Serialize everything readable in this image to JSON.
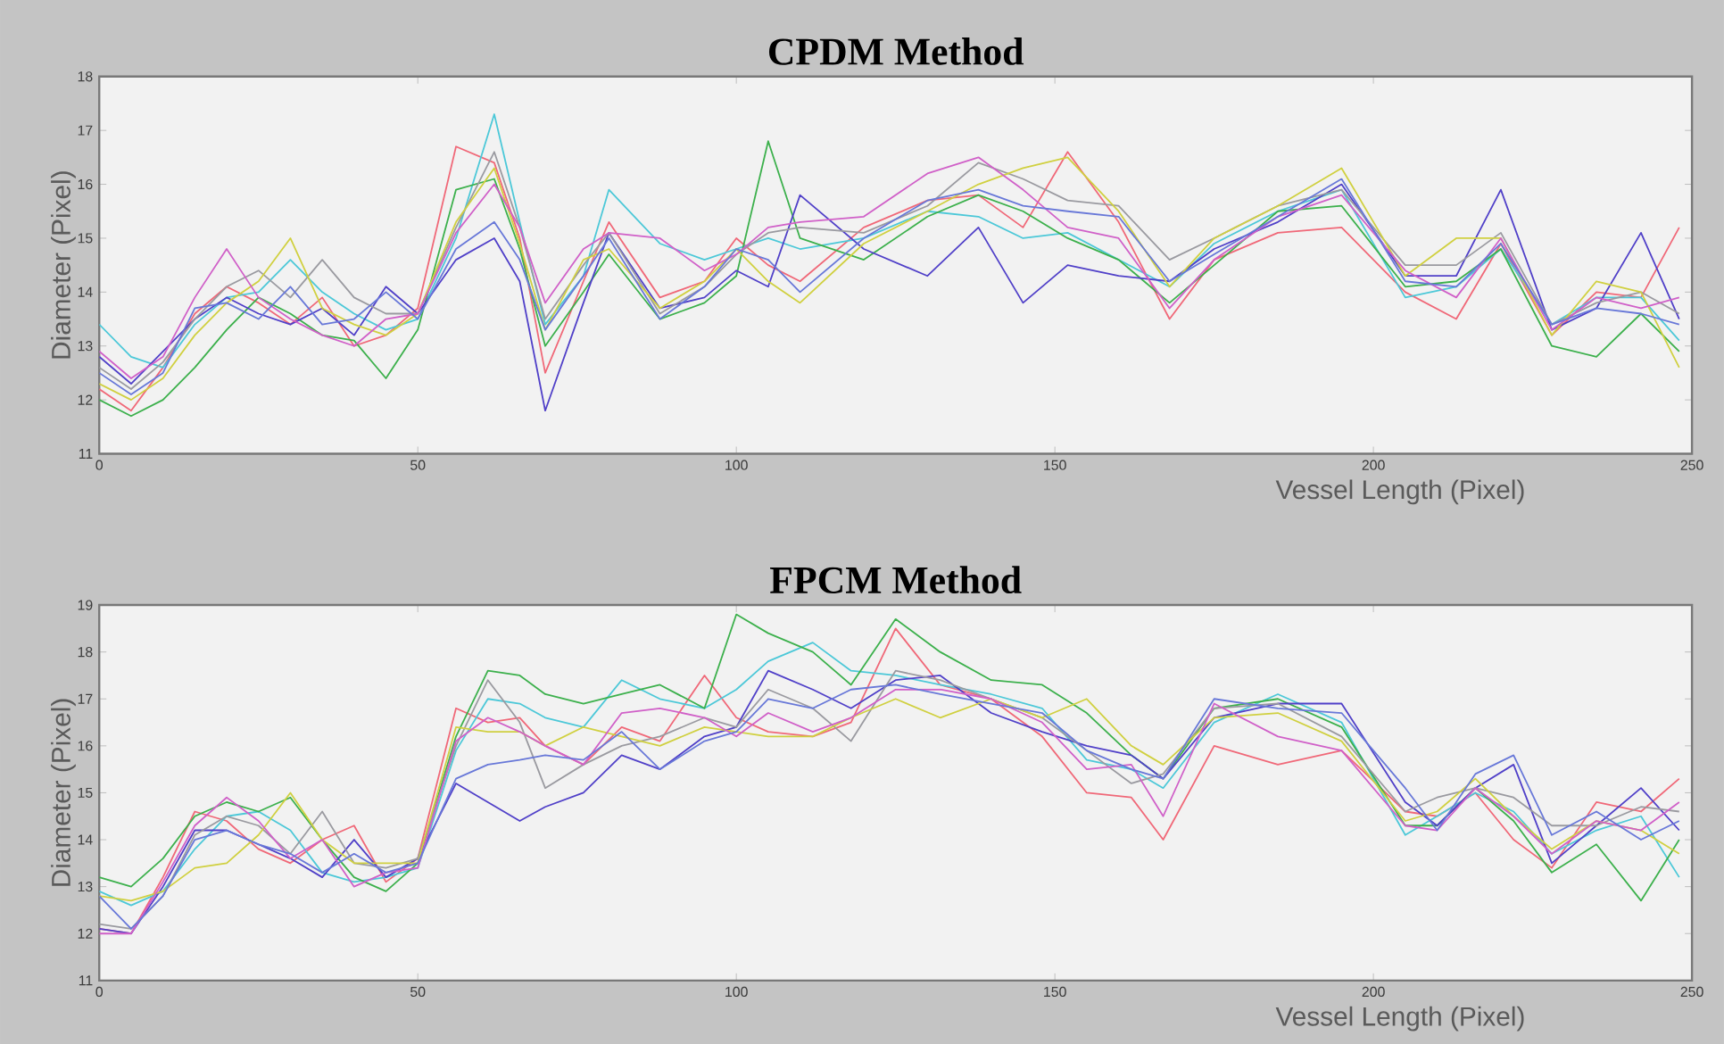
{
  "chart_data": [
    {
      "type": "line",
      "title": "CPDM Method",
      "xlabel": "Vessel Length (Pixel)",
      "ylabel": "Diameter (Pixel)",
      "xlim": [
        0,
        250
      ],
      "ylim": [
        11,
        18
      ],
      "xticks": [
        0,
        50,
        100,
        150,
        200,
        250
      ],
      "yticks": [
        11,
        12,
        13,
        14,
        15,
        16,
        17,
        18
      ],
      "marker": "none",
      "line_style": "solid",
      "x": [
        0,
        5,
        10,
        15,
        20,
        25,
        30,
        35,
        40,
        45,
        50,
        56,
        62,
        66,
        70,
        76,
        80,
        88,
        95,
        100,
        105,
        110,
        120,
        130,
        138,
        145,
        152,
        160,
        168,
        175,
        185,
        195,
        205,
        213,
        220,
        228,
        235,
        242,
        248
      ],
      "series": [
        {
          "color": "#f06878",
          "values": [
            12.2,
            11.8,
            12.6,
            13.6,
            14.1,
            13.8,
            13.4,
            13.9,
            13.0,
            13.2,
            13.7,
            16.7,
            16.4,
            15.0,
            12.5,
            14.2,
            15.3,
            13.9,
            14.2,
            15.0,
            14.5,
            14.2,
            15.2,
            15.7,
            15.8,
            15.2,
            16.6,
            15.3,
            13.5,
            14.6,
            15.1,
            15.2,
            14.0,
            13.5,
            14.9,
            13.2,
            14.0,
            13.9,
            15.2
          ]
        },
        {
          "color": "#4cc8d8",
          "values": [
            13.4,
            12.8,
            12.6,
            13.4,
            13.9,
            14.0,
            14.6,
            14.0,
            13.6,
            13.3,
            13.5,
            15.0,
            17.3,
            15.3,
            13.4,
            14.3,
            15.9,
            14.9,
            14.6,
            14.8,
            15.0,
            14.8,
            15.0,
            15.5,
            15.4,
            15.0,
            15.1,
            14.6,
            14.1,
            14.9,
            15.5,
            15.9,
            13.9,
            14.1,
            14.8,
            13.4,
            13.9,
            13.9,
            13.1
          ]
        },
        {
          "color": "#3cb04c",
          "values": [
            12.0,
            11.7,
            12.0,
            12.6,
            13.3,
            13.9,
            13.6,
            13.2,
            13.1,
            12.4,
            13.3,
            15.9,
            16.1,
            14.8,
            13.0,
            14.0,
            14.7,
            13.5,
            13.8,
            14.3,
            16.8,
            15.0,
            14.6,
            15.4,
            15.8,
            15.5,
            15.0,
            14.6,
            13.8,
            14.5,
            15.5,
            15.6,
            14.1,
            14.2,
            14.8,
            13.0,
            12.8,
            13.6,
            12.9
          ]
        },
        {
          "color": "#5040c8",
          "values": [
            12.8,
            12.3,
            12.9,
            13.5,
            13.9,
            13.6,
            13.4,
            13.7,
            13.2,
            14.1,
            13.6,
            14.6,
            15.0,
            14.2,
            11.8,
            13.8,
            15.1,
            13.7,
            13.9,
            14.4,
            14.1,
            15.8,
            14.8,
            14.3,
            15.2,
            13.8,
            14.5,
            14.3,
            14.2,
            14.8,
            15.3,
            16.0,
            14.3,
            14.3,
            15.9,
            13.3,
            13.7,
            15.1,
            13.5
          ]
        },
        {
          "color": "#9a9aa0",
          "values": [
            12.6,
            12.2,
            12.7,
            13.5,
            14.1,
            14.4,
            13.9,
            14.6,
            13.9,
            13.6,
            13.6,
            15.2,
            16.6,
            15.2,
            13.5,
            14.5,
            15.1,
            13.6,
            14.1,
            14.7,
            15.1,
            15.2,
            15.1,
            15.6,
            16.4,
            16.1,
            15.7,
            15.6,
            14.6,
            15.0,
            15.6,
            15.9,
            14.5,
            14.5,
            15.1,
            13.4,
            13.8,
            14.0,
            13.6
          ]
        },
        {
          "color": "#d0d040",
          "values": [
            12.3,
            12.0,
            12.4,
            13.2,
            13.8,
            14.2,
            15.0,
            13.7,
            13.4,
            13.2,
            13.6,
            15.3,
            16.3,
            14.9,
            13.3,
            14.6,
            14.8,
            13.7,
            14.2,
            14.8,
            14.2,
            13.8,
            14.9,
            15.5,
            16.0,
            16.3,
            16.5,
            15.5,
            14.1,
            15.0,
            15.6,
            16.3,
            14.3,
            15.0,
            15.0,
            13.2,
            14.2,
            14.0,
            12.6
          ]
        },
        {
          "color": "#d060c8",
          "values": [
            12.9,
            12.4,
            12.8,
            13.9,
            14.8,
            13.9,
            13.5,
            13.2,
            13.0,
            13.5,
            13.6,
            15.1,
            16.0,
            15.2,
            13.8,
            14.8,
            15.1,
            15.0,
            14.4,
            14.7,
            15.2,
            15.3,
            15.4,
            16.2,
            16.5,
            15.9,
            15.2,
            15.0,
            13.7,
            14.6,
            15.4,
            15.8,
            14.4,
            13.9,
            15.0,
            13.3,
            13.9,
            13.7,
            13.9
          ]
        },
        {
          "color": "#6878d8",
          "values": [
            12.5,
            12.1,
            12.5,
            13.7,
            13.8,
            13.5,
            14.1,
            13.4,
            13.5,
            14.0,
            13.5,
            14.8,
            15.3,
            14.6,
            13.3,
            14.3,
            15.0,
            13.5,
            14.1,
            14.8,
            14.6,
            14.0,
            15.0,
            15.7,
            15.9,
            15.6,
            15.5,
            15.4,
            14.2,
            14.7,
            15.4,
            16.1,
            14.2,
            14.1,
            14.9,
            13.4,
            13.7,
            13.6,
            13.4
          ]
        }
      ]
    },
    {
      "type": "line",
      "title": "FPCM Method",
      "xlabel": "Vessel Length (Pixel)",
      "ylabel": "Diameter (Pixel)",
      "xlim": [
        0,
        250
      ],
      "ylim": [
        11,
        19
      ],
      "xticks": [
        0,
        50,
        100,
        150,
        200,
        250
      ],
      "yticks": [
        11,
        12,
        13,
        14,
        15,
        16,
        17,
        18,
        19
      ],
      "marker": "none",
      "line_style": "solid",
      "x": [
        0,
        5,
        10,
        15,
        20,
        25,
        30,
        35,
        40,
        45,
        50,
        56,
        61,
        66,
        70,
        76,
        82,
        88,
        95,
        100,
        105,
        112,
        118,
        125,
        132,
        140,
        148,
        155,
        162,
        167,
        175,
        185,
        195,
        205,
        210,
        216,
        222,
        228,
        235,
        242,
        248
      ],
      "series": [
        {
          "color": "#f06878",
          "values": [
            12.1,
            12.0,
            13.2,
            14.6,
            14.4,
            13.8,
            13.5,
            14.0,
            14.3,
            13.1,
            13.6,
            16.8,
            16.5,
            16.6,
            16.0,
            15.6,
            16.4,
            16.1,
            17.5,
            16.6,
            16.3,
            16.2,
            16.5,
            18.5,
            17.3,
            17.0,
            16.2,
            15.0,
            14.9,
            14.0,
            16.0,
            15.6,
            15.9,
            14.6,
            14.5,
            15.0,
            14.0,
            13.4,
            14.8,
            14.6,
            15.3
          ]
        },
        {
          "color": "#4cc8d8",
          "values": [
            12.9,
            12.6,
            12.9,
            13.8,
            14.5,
            14.6,
            14.2,
            13.3,
            13.1,
            13.2,
            13.4,
            15.9,
            17.0,
            16.9,
            16.6,
            16.4,
            17.4,
            17.0,
            16.8,
            17.2,
            17.8,
            18.2,
            17.6,
            17.5,
            17.3,
            17.1,
            16.8,
            15.7,
            15.5,
            15.1,
            16.5,
            17.1,
            16.5,
            14.1,
            14.5,
            15.0,
            14.6,
            13.7,
            14.2,
            14.5,
            13.2
          ]
        },
        {
          "color": "#3cb04c",
          "values": [
            13.2,
            13.0,
            13.6,
            14.5,
            14.8,
            14.6,
            14.9,
            14.0,
            13.2,
            12.9,
            13.5,
            16.2,
            17.6,
            17.5,
            17.1,
            16.9,
            17.1,
            17.3,
            16.8,
            18.8,
            18.4,
            18.0,
            17.3,
            18.7,
            18.0,
            17.4,
            17.3,
            16.7,
            15.8,
            15.3,
            16.8,
            17.0,
            16.4,
            14.3,
            14.3,
            15.1,
            14.4,
            13.3,
            13.9,
            12.7,
            14.0
          ]
        },
        {
          "color": "#5040c8",
          "values": [
            12.1,
            12.0,
            13.0,
            14.2,
            14.2,
            13.9,
            13.6,
            13.2,
            14.0,
            13.2,
            13.6,
            15.2,
            14.8,
            14.4,
            14.7,
            15.0,
            15.8,
            15.5,
            16.2,
            16.4,
            17.6,
            17.2,
            16.8,
            17.4,
            17.5,
            16.7,
            16.3,
            16.0,
            15.8,
            15.3,
            16.6,
            16.9,
            16.9,
            14.8,
            14.3,
            15.1,
            15.6,
            13.5,
            14.3,
            15.1,
            14.2
          ]
        },
        {
          "color": "#9a9aa0",
          "values": [
            12.2,
            12.1,
            12.8,
            14.1,
            14.5,
            14.3,
            13.7,
            14.6,
            13.5,
            13.4,
            13.6,
            16.0,
            17.4,
            16.5,
            15.1,
            15.6,
            16.0,
            16.2,
            16.6,
            16.4,
            17.2,
            16.8,
            16.1,
            17.6,
            17.4,
            17.0,
            16.6,
            15.9,
            15.2,
            15.4,
            16.8,
            16.9,
            16.2,
            14.6,
            14.9,
            15.1,
            14.9,
            14.3,
            14.3,
            14.7,
            14.6
          ]
        },
        {
          "color": "#d0d040",
          "values": [
            12.8,
            12.7,
            12.9,
            13.4,
            13.5,
            14.1,
            15.0,
            14.0,
            13.5,
            13.5,
            13.5,
            16.4,
            16.3,
            16.3,
            16.0,
            16.4,
            16.2,
            16.0,
            16.4,
            16.3,
            16.2,
            16.2,
            16.6,
            17.0,
            16.6,
            17.0,
            16.6,
            17.0,
            16.0,
            15.6,
            16.6,
            16.7,
            16.1,
            14.4,
            14.6,
            15.3,
            14.5,
            13.8,
            14.4,
            14.2,
            13.7
          ]
        },
        {
          "color": "#d060c8",
          "values": [
            12.0,
            12.0,
            13.1,
            14.3,
            14.9,
            14.4,
            13.6,
            14.0,
            13.0,
            13.3,
            13.4,
            16.1,
            16.6,
            16.3,
            16.0,
            15.6,
            16.7,
            16.8,
            16.6,
            16.2,
            16.7,
            16.3,
            16.6,
            17.2,
            17.2,
            17.0,
            16.5,
            15.5,
            15.6,
            14.5,
            16.9,
            16.2,
            15.9,
            14.3,
            14.2,
            15.1,
            14.5,
            13.7,
            14.4,
            14.2,
            14.8
          ]
        },
        {
          "color": "#6878d8",
          "values": [
            12.8,
            12.1,
            12.8,
            14.0,
            14.2,
            13.9,
            13.7,
            13.3,
            13.7,
            13.3,
            13.5,
            15.3,
            15.6,
            15.7,
            15.8,
            15.7,
            16.3,
            15.5,
            16.1,
            16.3,
            17.0,
            16.8,
            17.2,
            17.3,
            17.1,
            16.9,
            16.7,
            15.9,
            15.5,
            15.3,
            17.0,
            16.8,
            16.7,
            15.1,
            14.2,
            15.4,
            15.8,
            14.1,
            14.6,
            14.0,
            14.4
          ]
        }
      ]
    }
  ]
}
